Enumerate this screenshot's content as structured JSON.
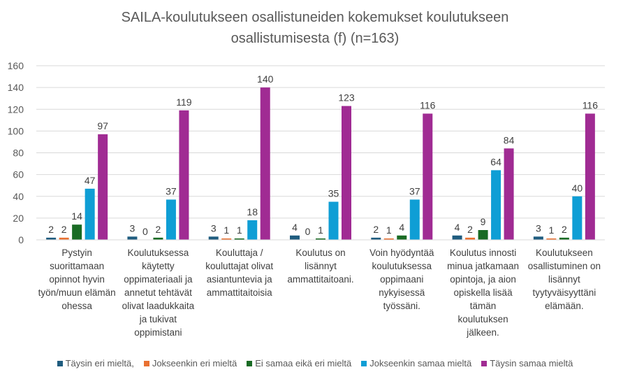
{
  "chart_data": {
    "type": "bar",
    "title": "SAILA-koulutukseen osallistuneiden kokemukset koulutukseen osallistumisesta (f) (n=163)",
    "categories": [
      "Pystyin suorittamaan opinnot hyvin työn/muun elämän ohessa",
      "Koulutuksessa käytetty oppimateriaali ja annetut tehtävät olivat laadukkaita ja tukivat oppimistani",
      "Kouluttaja / kouluttajat olivat asiantuntevia ja ammattitaitoisia",
      "Koulutus on lisännyt ammattitaitoani.",
      "Voin hyödyntää koulutuksessa oppimaani nykyisessä työssäni.",
      "Koulutus innosti minua jatkamaan opintoja, ja aion opiskella lisää tämän koulutuksen jälkeen.",
      "Koulutukseen osallistuminen on lisännyt tyytyväisyyttäni elämään."
    ],
    "series": [
      {
        "name": "Täysin eri mieltä,",
        "color": "#1f5c7f",
        "values": [
          2,
          3,
          3,
          4,
          2,
          4,
          3
        ]
      },
      {
        "name": "Jokseenkin eri mieltä",
        "color": "#e97132",
        "values": [
          2,
          0,
          1,
          0,
          1,
          2,
          1
        ]
      },
      {
        "name": "Ei samaa eikä eri mieltä",
        "color": "#196b24",
        "values": [
          14,
          2,
          1,
          1,
          4,
          9,
          2
        ]
      },
      {
        "name": "Jokseenkin samaa mieltä",
        "color": "#0f9ed5",
        "values": [
          47,
          37,
          18,
          35,
          37,
          64,
          40
        ]
      },
      {
        "name": "Täysin samaa mieltä",
        "color": "#a02b93",
        "values": [
          97,
          119,
          140,
          123,
          116,
          84,
          116
        ]
      }
    ],
    "yticks": [
      "0",
      "20",
      "40",
      "60",
      "80",
      "100",
      "120",
      "140",
      "160"
    ],
    "ylim": [
      0,
      160
    ],
    "grid": true,
    "legend": "bottom"
  }
}
